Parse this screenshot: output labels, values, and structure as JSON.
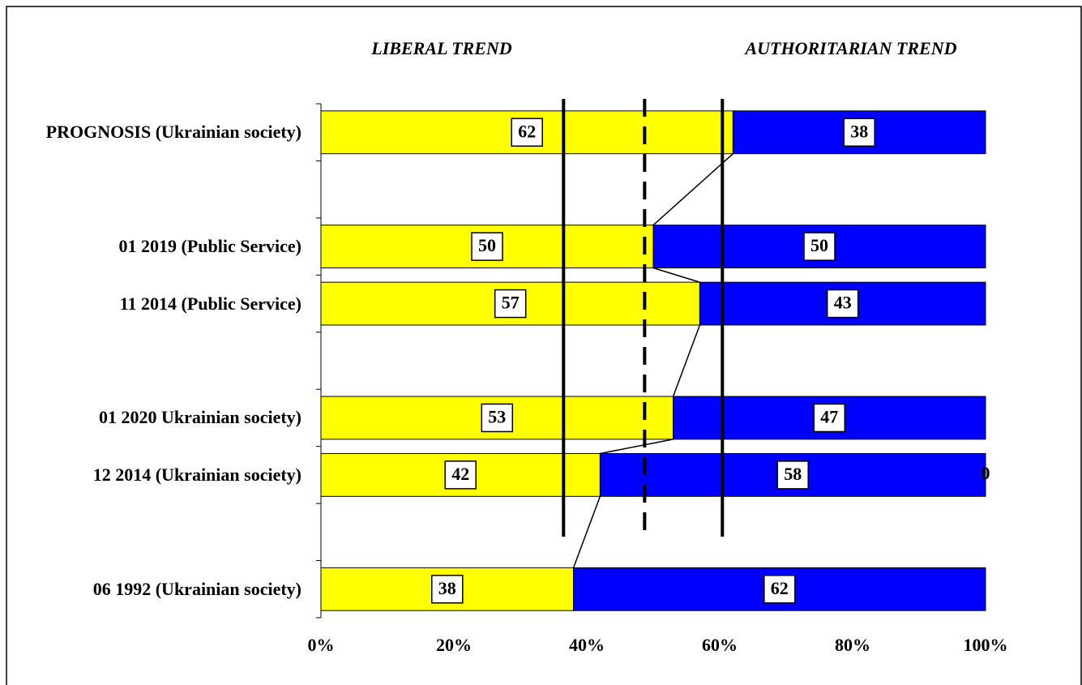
{
  "chart_data": {
    "type": "stacked_barh",
    "categories": [
      "PROGNOSIS (Ukrainian society)",
      null,
      "01  2019 (Public Service)",
      "11  2014 (Public Service)",
      null,
      "01  2020 Ukrainian society)",
      "12  2014 (Ukrainian society)",
      null,
      "06 1992 (Ukrainian society)"
    ],
    "series": [
      {
        "name": "LIBERAL TREND",
        "color": "#ffff00",
        "values": [
          62,
          null,
          50,
          57,
          null,
          53,
          42,
          null,
          38
        ]
      },
      {
        "name": "AUTHORITARIAN TREND",
        "color": "#0000ff",
        "values": [
          38,
          null,
          50,
          43,
          null,
          47,
          58,
          null,
          62
        ]
      }
    ],
    "xlim": [
      0,
      100
    ],
    "xticks": [
      {
        "value": 0,
        "label": "0%"
      },
      {
        "value": 20,
        "label": "20%"
      },
      {
        "value": 40,
        "label": "40%"
      },
      {
        "value": 60,
        "label": "60%"
      },
      {
        "value": 80,
        "label": "80%"
      },
      {
        "value": 100,
        "label": "100%"
      }
    ],
    "reference_lines": [
      {
        "value": 36.5,
        "style": "solid"
      },
      {
        "value": 48.7,
        "style": "dashed"
      },
      {
        "value": 60.4,
        "style": "solid"
      }
    ],
    "annotations": [
      "0"
    ]
  }
}
